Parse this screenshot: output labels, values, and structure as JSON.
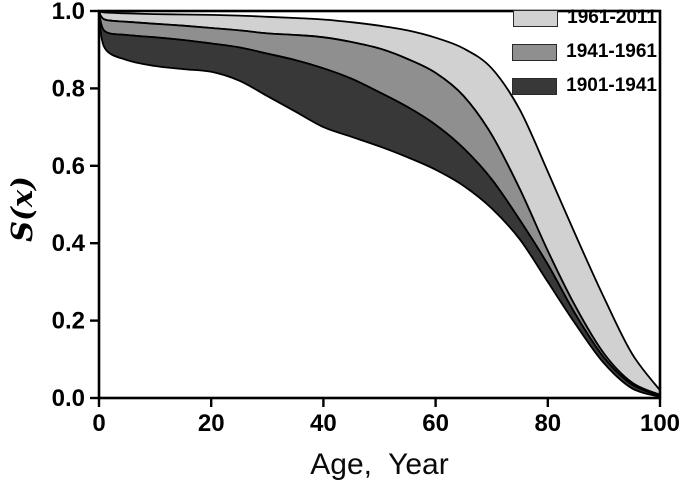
{
  "chart_data": {
    "type": "area",
    "title": "",
    "xlabel": "Age,  Year",
    "ylabel": "S(x)",
    "xlim": [
      0,
      100
    ],
    "ylim": [
      0.0,
      1.0
    ],
    "grid": false,
    "legend_position": "top-right-inside",
    "xticks": [
      0,
      20,
      40,
      60,
      80,
      100
    ],
    "xticklabels": [
      "0",
      "20",
      "40",
      "60",
      "80",
      "100"
    ],
    "yticks": [
      0.0,
      0.2,
      0.4,
      0.6,
      0.8,
      1.0
    ],
    "yticklabels": [
      "0.0",
      "0.2",
      "0.4",
      "0.6",
      "0.8",
      "1.0"
    ],
    "ages": [
      0,
      1,
      5,
      10,
      15,
      20,
      25,
      30,
      35,
      40,
      45,
      50,
      55,
      60,
      65,
      70,
      75,
      80,
      85,
      90,
      95,
      100
    ],
    "boundaries": {
      "s2011": [
        1.0,
        0.996,
        0.994,
        0.992,
        0.991,
        0.99,
        0.988,
        0.985,
        0.982,
        0.978,
        0.971,
        0.962,
        0.95,
        0.931,
        0.903,
        0.852,
        0.745,
        0.585,
        0.42,
        0.26,
        0.115,
        0.02
      ],
      "s1961": [
        1.0,
        0.978,
        0.972,
        0.967,
        0.962,
        0.956,
        0.95,
        0.942,
        0.938,
        0.932,
        0.92,
        0.903,
        0.876,
        0.84,
        0.78,
        0.68,
        0.54,
        0.38,
        0.235,
        0.115,
        0.04,
        0.008
      ],
      "s1941": [
        1.0,
        0.948,
        0.938,
        0.932,
        0.925,
        0.916,
        0.906,
        0.89,
        0.873,
        0.852,
        0.825,
        0.79,
        0.752,
        0.706,
        0.645,
        0.565,
        0.46,
        0.345,
        0.215,
        0.105,
        0.035,
        0.006
      ],
      "s1901": [
        1.0,
        0.905,
        0.873,
        0.858,
        0.85,
        0.843,
        0.82,
        0.78,
        0.74,
        0.7,
        0.675,
        0.65,
        0.622,
        0.59,
        0.548,
        0.49,
        0.41,
        0.3,
        0.19,
        0.09,
        0.025,
        0.003
      ]
    },
    "bands": [
      {
        "label": "1961-2011",
        "upper": "s2011",
        "lower": "s1961",
        "color": "#d1d1d1"
      },
      {
        "label": "1941-1961",
        "upper": "s1961",
        "lower": "s1941",
        "color": "#8f8f8f"
      },
      {
        "label": "1901-1941",
        "upper": "s1941",
        "lower": "s1901",
        "color": "#383838"
      }
    ],
    "line_color": "#000000",
    "frame_color": "#000000",
    "background_color": "#ffffff"
  }
}
